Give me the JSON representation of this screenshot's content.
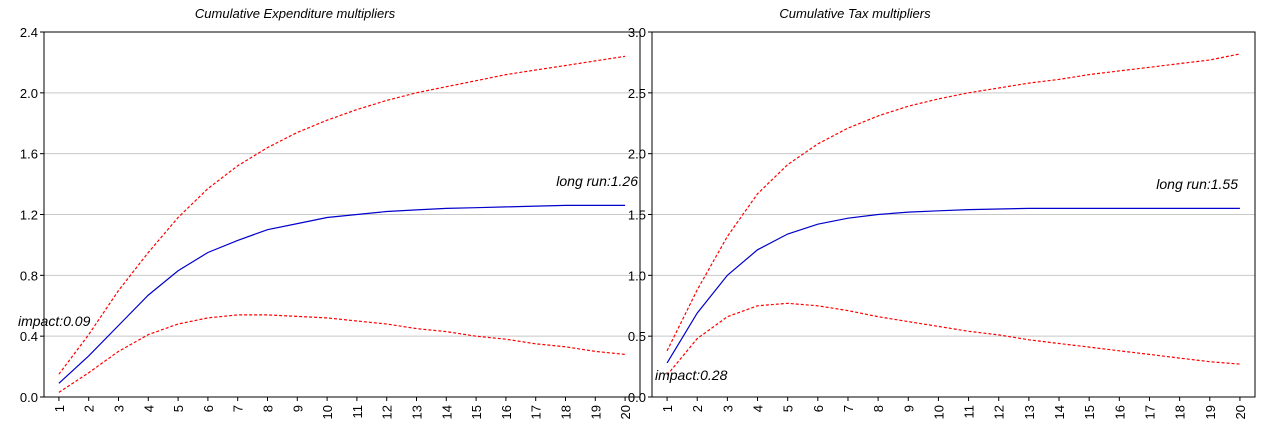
{
  "chart_data": [
    {
      "type": "line",
      "title": "Cumulative Expenditure multipliers",
      "x": [
        1,
        2,
        3,
        4,
        5,
        6,
        7,
        8,
        9,
        10,
        11,
        12,
        13,
        14,
        15,
        16,
        17,
        18,
        19,
        20
      ],
      "xticklabels": [
        "1",
        "2",
        "3",
        "4",
        "5",
        "6",
        "7",
        "8",
        "9",
        "10",
        "11",
        "12",
        "13",
        "14",
        "15",
        "16",
        "17",
        "18",
        "19",
        "20"
      ],
      "ylim": [
        0.0,
        2.4
      ],
      "yticks": [
        0.0,
        0.4,
        0.8,
        1.2,
        1.6,
        2.0,
        2.4
      ],
      "yticklabels": [
        "0.0",
        "0.4",
        "0.8",
        "1.2",
        "1.6",
        "2.0",
        "2.4"
      ],
      "grid": true,
      "series": [
        {
          "role": "estimate",
          "color": "#0000cc",
          "style": "solid",
          "values": [
            0.09,
            0.27,
            0.47,
            0.67,
            0.83,
            0.95,
            1.03,
            1.1,
            1.14,
            1.18,
            1.2,
            1.22,
            1.23,
            1.24,
            1.245,
            1.25,
            1.255,
            1.26,
            1.26,
            1.26
          ]
        },
        {
          "role": "upper-band",
          "color": "#ff0000",
          "style": "dashed",
          "values": [
            0.15,
            0.41,
            0.7,
            0.95,
            1.18,
            1.37,
            1.52,
            1.64,
            1.74,
            1.82,
            1.89,
            1.95,
            2.0,
            2.04,
            2.08,
            2.12,
            2.15,
            2.18,
            2.21,
            2.24
          ]
        },
        {
          "role": "lower-band",
          "color": "#ff0000",
          "style": "dashed",
          "values": [
            0.03,
            0.16,
            0.3,
            0.41,
            0.48,
            0.52,
            0.54,
            0.54,
            0.53,
            0.52,
            0.5,
            0.48,
            0.45,
            0.43,
            0.4,
            0.38,
            0.35,
            0.33,
            0.3,
            0.28
          ]
        }
      ],
      "annotations": {
        "impact": "impact:0.09",
        "long_run": "long run:1.26"
      }
    },
    {
      "type": "line",
      "title": "Cumulative Tax multipliers",
      "x": [
        1,
        2,
        3,
        4,
        5,
        6,
        7,
        8,
        9,
        10,
        11,
        12,
        13,
        14,
        15,
        16,
        17,
        18,
        19,
        20
      ],
      "xticklabels": [
        "1",
        "2",
        "3",
        "4",
        "5",
        "6",
        "7",
        "8",
        "9",
        "10",
        "11",
        "12",
        "13",
        "14",
        "15",
        "16",
        "17",
        "18",
        "19",
        "20"
      ],
      "ylim": [
        0.0,
        3.0
      ],
      "yticks": [
        0.0,
        0.5,
        1.0,
        1.5,
        2.0,
        2.5,
        3.0
      ],
      "yticklabels": [
        "0.0",
        "0.5",
        "1.0",
        "1.5",
        "2.0",
        "2.5",
        "3.0"
      ],
      "grid": true,
      "series": [
        {
          "role": "estimate",
          "color": "#0000cc",
          "style": "solid",
          "values": [
            0.28,
            0.69,
            1.0,
            1.21,
            1.34,
            1.42,
            1.47,
            1.5,
            1.52,
            1.53,
            1.54,
            1.545,
            1.55,
            1.55,
            1.55,
            1.55,
            1.55,
            1.55,
            1.55,
            1.55
          ]
        },
        {
          "role": "upper-band",
          "color": "#ff0000",
          "style": "dashed",
          "values": [
            0.38,
            0.88,
            1.32,
            1.67,
            1.91,
            2.08,
            2.21,
            2.31,
            2.39,
            2.45,
            2.5,
            2.54,
            2.58,
            2.61,
            2.65,
            2.68,
            2.71,
            2.74,
            2.77,
            2.82
          ]
        },
        {
          "role": "lower-band",
          "color": "#ff0000",
          "style": "dashed",
          "values": [
            0.18,
            0.48,
            0.66,
            0.75,
            0.77,
            0.75,
            0.71,
            0.66,
            0.62,
            0.58,
            0.54,
            0.51,
            0.47,
            0.44,
            0.41,
            0.38,
            0.35,
            0.32,
            0.29,
            0.27
          ]
        }
      ],
      "annotations": {
        "impact": "impact:0.28",
        "long_run": "long run:1.55"
      }
    }
  ]
}
